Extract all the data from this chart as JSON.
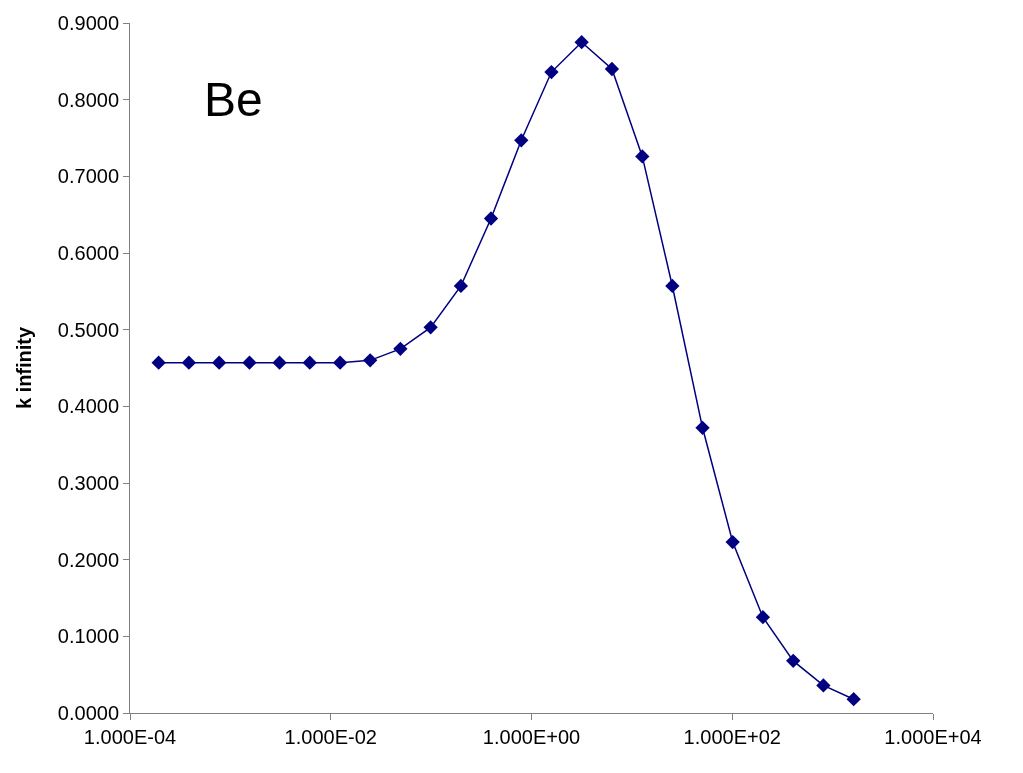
{
  "chart_data": {
    "type": "line",
    "ylabel": "k infinity",
    "annotations": [
      "Be"
    ],
    "x": [
      0.000193,
      0.000386,
      0.000773,
      0.00155,
      0.00309,
      0.00618,
      0.0124,
      0.0247,
      0.0494,
      0.0989,
      0.198,
      0.395,
      0.791,
      1.58,
      3.16,
      6.33,
      12.7,
      25.3,
      50.6,
      101,
      202,
      405,
      809,
      1620
    ],
    "series": [
      {
        "color": "#000080",
        "values": [
          0.457,
          0.457,
          0.457,
          0.457,
          0.457,
          0.457,
          0.457,
          0.46,
          0.475,
          0.503,
          0.557,
          0.645,
          0.747,
          0.836,
          0.875,
          0.84,
          0.726,
          0.557,
          0.372,
          0.223,
          0.125,
          0.068,
          0.036,
          0.018
        ]
      }
    ],
    "log": "x",
    "xlim": [
      0.0001,
      10000
    ],
    "xticks": [
      {
        "value": 0.0001,
        "label": "1.000E-04"
      },
      {
        "value": 0.01,
        "label": "1.000E-02"
      },
      {
        "value": 1,
        "label": "1.000E+00"
      },
      {
        "value": 100,
        "label": "1.000E+02"
      },
      {
        "value": 10000,
        "label": "1.000E+04"
      }
    ],
    "ylim": [
      0,
      0.9
    ],
    "yticks": [
      {
        "value": 0,
        "label": "0.0000"
      },
      {
        "value": 0.1,
        "label": "0.1000"
      },
      {
        "value": 0.2,
        "label": "0.2000"
      },
      {
        "value": 0.3,
        "label": "0.3000"
      },
      {
        "value": 0.4,
        "label": "0.4000"
      },
      {
        "value": 0.5,
        "label": "0.5000"
      },
      {
        "value": 0.6,
        "label": "0.6000"
      },
      {
        "value": 0.7,
        "label": "0.7000"
      },
      {
        "value": 0.8,
        "label": "0.8000"
      },
      {
        "value": 0.9,
        "label": "0.9000"
      }
    ],
    "marker": "diamond",
    "line_style": "solid"
  }
}
